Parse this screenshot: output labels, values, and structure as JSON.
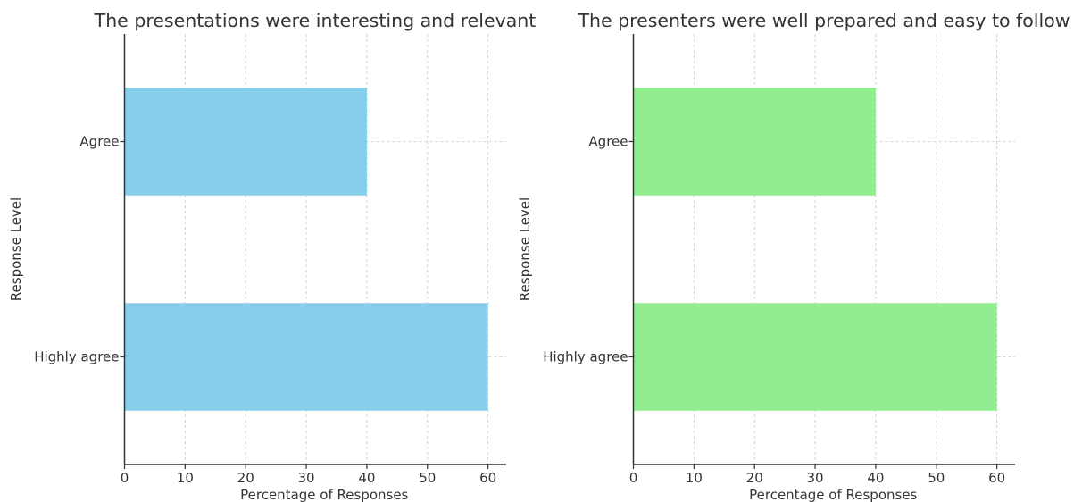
{
  "chart_data": [
    {
      "type": "bar",
      "orientation": "horizontal",
      "title": "The presentations were interesting and relevant",
      "xlabel": "Percentage of Responses",
      "ylabel": "Response Level",
      "categories": [
        "Agree",
        "Highly agree"
      ],
      "values": [
        40,
        60
      ],
      "xticks": [
        "0",
        "10",
        "20",
        "30",
        "40",
        "50",
        "60"
      ],
      "xlim": [
        0,
        63
      ],
      "grid": true,
      "color": "#87ceeb"
    },
    {
      "type": "bar",
      "orientation": "horizontal",
      "title": "The presenters were well prepared and easy to follow",
      "xlabel": "Percentage of Responses",
      "ylabel": "Response Level",
      "categories": [
        "Agree",
        "Highly agree"
      ],
      "values": [
        40,
        60
      ],
      "xticks": [
        "0",
        "10",
        "20",
        "30",
        "40",
        "50",
        "60"
      ],
      "xlim": [
        0,
        63
      ],
      "grid": true,
      "color": "#90ee90"
    }
  ]
}
